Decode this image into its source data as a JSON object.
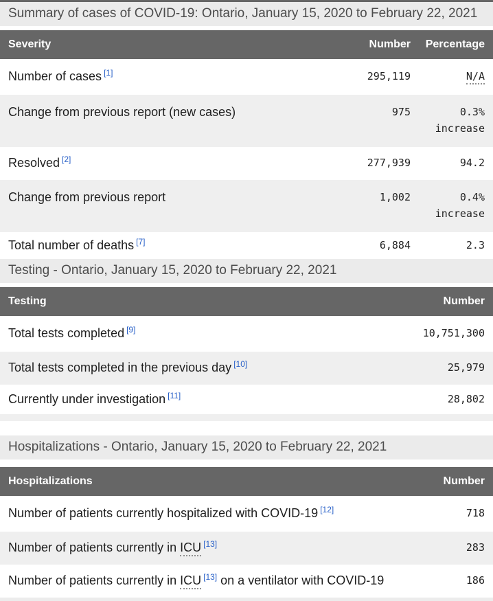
{
  "colors": {
    "table_header_bg": "#666666",
    "table_header_text": "#ffffff",
    "caption_bg": "#ebebeb",
    "caption_text": "#4d4d4d",
    "stripe_row_bg": "#efefef",
    "body_text": "#1f1f1f",
    "number_text": "#222222",
    "footnote_link": "#2860c8"
  },
  "summary": {
    "caption": "Summary of cases of COVID-19: Ontario, January 15, 2020 to February 22, 2021",
    "columns": [
      "Severity",
      "Number",
      "Percentage"
    ],
    "rows": [
      {
        "label": "Number of cases",
        "sup": "[1]",
        "number": "295,119",
        "pct": "N/A"
      },
      {
        "label": "Change from previous report (new cases)",
        "number": "975",
        "pct": "0.3%",
        "pct2": "increase"
      },
      {
        "label": "Resolved",
        "sup": "[2]",
        "number": "277,939",
        "pct": "94.2"
      },
      {
        "label": "Change from previous report",
        "number": "1,002",
        "pct": "0.4%",
        "pct2": "increase"
      },
      {
        "label": "Total number of deaths",
        "sup": "[7]",
        "number": "6,884",
        "pct": "2.3"
      }
    ]
  },
  "testing": {
    "caption": "Testing - Ontario, January 15, 2020 to February 22, 2021",
    "columns": [
      "Testing",
      "Number"
    ],
    "rows": [
      {
        "label": "Total tests completed",
        "sup": "[9]",
        "number": "10,751,300"
      },
      {
        "label": "Total tests completed in the previous day",
        "sup": "[10]",
        "number": "25,979"
      },
      {
        "label": "Currently under investigation",
        "sup": "[11]",
        "number": "28,802"
      }
    ]
  },
  "hospitalizations": {
    "caption": "Hospitalizations - Ontario, January 15, 2020 to February 22, 2021",
    "columns": [
      "Hospitalizations",
      "Number"
    ],
    "rows": [
      {
        "prefix": "Number of patients currently hospitalized with COVID-19",
        "sup": "[12]",
        "number": "718"
      },
      {
        "prefix": "Number of patients currently in",
        "abbr": "ICU",
        "sup": "[13]",
        "number": "283"
      },
      {
        "prefix": "Number of patients currently in",
        "abbr": "ICU",
        "sup": "[13]",
        "suffix": "on a ventilator with COVID-19",
        "number": "186"
      }
    ]
  }
}
